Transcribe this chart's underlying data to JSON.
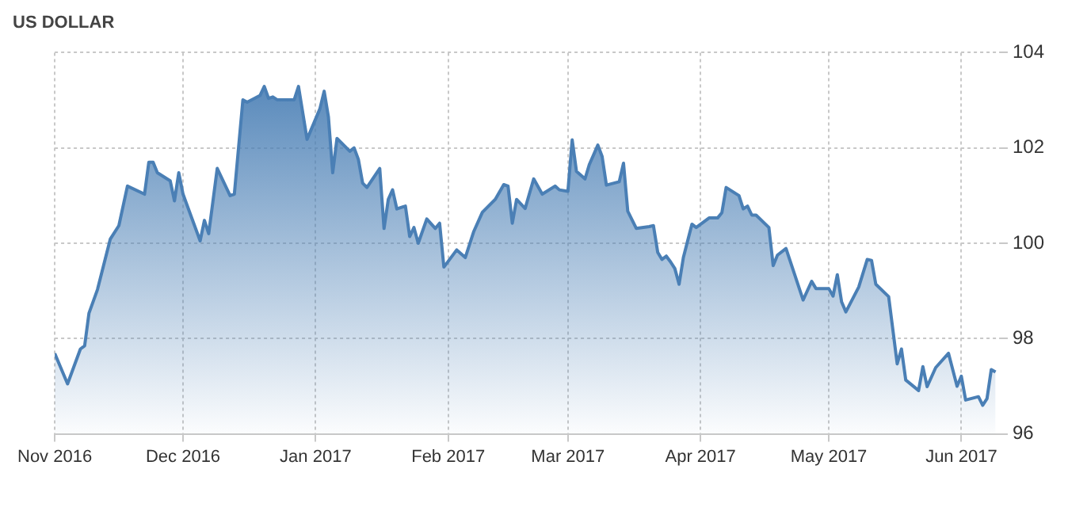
{
  "chart_data": {
    "type": "area",
    "title": "US DOLLAR",
    "x": [
      "2016-11-01",
      "2016-11-04",
      "2016-11-07",
      "2016-11-08",
      "2016-11-09",
      "2016-11-11",
      "2016-11-14",
      "2016-11-16",
      "2016-11-18",
      "2016-11-22",
      "2016-11-23",
      "2016-11-24",
      "2016-11-25",
      "2016-11-28",
      "2016-11-29",
      "2016-11-30",
      "2016-12-01",
      "2016-12-05",
      "2016-12-06",
      "2016-12-07",
      "2016-12-09",
      "2016-12-12",
      "2016-12-13",
      "2016-12-15",
      "2016-12-16",
      "2016-12-19",
      "2016-12-20",
      "2016-12-21",
      "2016-12-22",
      "2016-12-23",
      "2016-12-27",
      "2016-12-28",
      "2016-12-30",
      "2017-01-02",
      "2017-01-03",
      "2017-01-04",
      "2017-01-05",
      "2017-01-06",
      "2017-01-09",
      "2017-01-10",
      "2017-01-11",
      "2017-01-12",
      "2017-01-13",
      "2017-01-16",
      "2017-01-17",
      "2017-01-18",
      "2017-01-19",
      "2017-01-20",
      "2017-01-22",
      "2017-01-23",
      "2017-01-24",
      "2017-01-25",
      "2017-01-27",
      "2017-01-29",
      "2017-01-30",
      "2017-01-31",
      "2017-02-03",
      "2017-02-05",
      "2017-02-07",
      "2017-02-09",
      "2017-02-12",
      "2017-02-14",
      "2017-02-15",
      "2017-02-16",
      "2017-02-17",
      "2017-02-19",
      "2017-02-21",
      "2017-02-23",
      "2017-02-26",
      "2017-02-27",
      "2017-03-01",
      "2017-03-02",
      "2017-03-03",
      "2017-03-05",
      "2017-03-06",
      "2017-03-08",
      "2017-03-09",
      "2017-03-10",
      "2017-03-13",
      "2017-03-14",
      "2017-03-15",
      "2017-03-17",
      "2017-03-20",
      "2017-03-21",
      "2017-03-22",
      "2017-03-23",
      "2017-03-24",
      "2017-03-25",
      "2017-03-26",
      "2017-03-27",
      "2017-03-28",
      "2017-03-30",
      "2017-03-31",
      "2017-04-03",
      "2017-04-05",
      "2017-04-06",
      "2017-04-07",
      "2017-04-10",
      "2017-04-11",
      "2017-04-12",
      "2017-04-13",
      "2017-04-14",
      "2017-04-17",
      "2017-04-18",
      "2017-04-19",
      "2017-04-21",
      "2017-04-25",
      "2017-04-27",
      "2017-04-28",
      "2017-05-01",
      "2017-05-02",
      "2017-05-03",
      "2017-05-04",
      "2017-05-05",
      "2017-05-08",
      "2017-05-10",
      "2017-05-11",
      "2017-05-12",
      "2017-05-15",
      "2017-05-17",
      "2017-05-18",
      "2017-05-19",
      "2017-05-22",
      "2017-05-23",
      "2017-05-24",
      "2017-05-26",
      "2017-05-29",
      "2017-05-31",
      "2017-06-01",
      "2017-06-02",
      "2017-06-05",
      "2017-06-06",
      "2017-06-07",
      "2017-06-08",
      "2017-06-09"
    ],
    "series": [
      {
        "color": "#4a7fb5",
        "values": [
          97.69,
          97.05,
          97.78,
          97.85,
          98.53,
          99.03,
          100.09,
          100.37,
          101.2,
          101.03,
          101.7,
          101.7,
          101.48,
          101.31,
          100.89,
          101.48,
          101.03,
          100.05,
          100.48,
          100.2,
          101.57,
          101.0,
          101.03,
          103.01,
          102.96,
          103.1,
          103.29,
          103.04,
          103.07,
          103.01,
          103.01,
          103.29,
          102.18,
          102.82,
          103.19,
          102.65,
          101.48,
          102.2,
          101.93,
          102.0,
          101.76,
          101.26,
          101.17,
          101.57,
          100.31,
          100.92,
          101.12,
          100.72,
          100.78,
          100.14,
          100.33,
          100.0,
          100.51,
          100.31,
          100.42,
          99.5,
          99.86,
          99.7,
          100.25,
          100.65,
          100.92,
          101.23,
          101.2,
          100.42,
          100.92,
          100.73,
          101.35,
          101.03,
          101.2,
          101.12,
          101.09,
          102.17,
          101.51,
          101.35,
          101.65,
          102.06,
          101.82,
          101.22,
          101.29,
          101.68,
          100.67,
          100.31,
          100.35,
          100.37,
          99.81,
          99.66,
          99.73,
          99.61,
          99.47,
          99.14,
          99.7,
          100.4,
          100.33,
          100.53,
          100.53,
          100.64,
          101.17,
          101.0,
          100.72,
          100.78,
          100.59,
          100.59,
          100.33,
          99.53,
          99.75,
          99.89,
          98.81,
          99.2,
          99.05,
          99.05,
          98.89,
          99.34,
          98.77,
          98.56,
          99.08,
          99.66,
          99.64,
          99.14,
          98.88,
          97.47,
          97.78,
          97.13,
          96.91,
          97.41,
          96.99,
          97.39,
          97.69,
          97.0,
          97.21,
          96.71,
          96.78,
          96.6,
          96.74,
          97.35,
          97.3
        ]
      }
    ],
    "xlim": [
      "2016-11-01",
      "2017-06-10"
    ],
    "xticks": [
      {
        "value": "2016-11-01",
        "label": "Nov 2016"
      },
      {
        "value": "2016-12-01",
        "label": "Dec 2016"
      },
      {
        "value": "2017-01-01",
        "label": "Jan 2017"
      },
      {
        "value": "2017-02-01",
        "label": "Feb 2017"
      },
      {
        "value": "2017-03-01",
        "label": "Mar 2017"
      },
      {
        "value": "2017-04-01",
        "label": "Apr 2017"
      },
      {
        "value": "2017-05-01",
        "label": "May 2017"
      },
      {
        "value": "2017-06-01",
        "label": "Jun 2017"
      }
    ],
    "ylim": [
      96,
      104
    ],
    "yticks": [
      96,
      98,
      100,
      102,
      104
    ],
    "grid": true,
    "legend": false
  }
}
